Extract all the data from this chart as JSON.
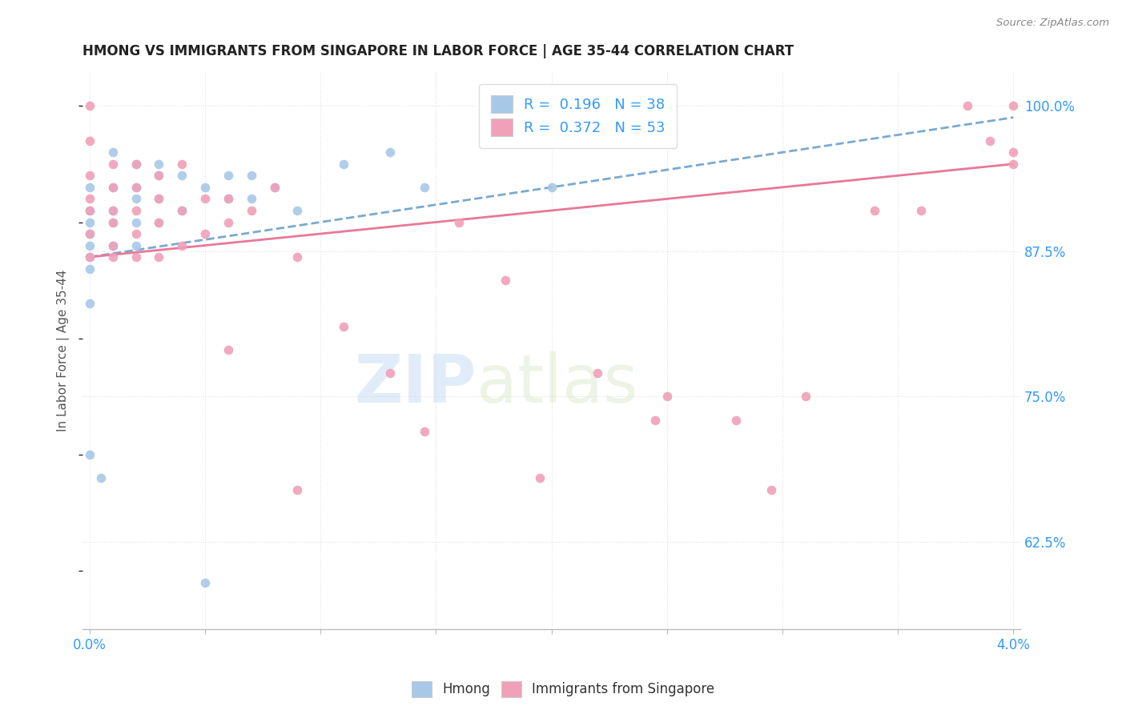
{
  "title": "HMONG VS IMMIGRANTS FROM SINGAPORE IN LABOR FORCE | AGE 35-44 CORRELATION CHART",
  "source": "Source: ZipAtlas.com",
  "ylabel": "In Labor Force | Age 35-44",
  "xlim": [
    0.0,
    0.04
  ],
  "ylim": [
    0.55,
    1.03
  ],
  "xticks": [
    0.0,
    0.005,
    0.01,
    0.015,
    0.02,
    0.025,
    0.03,
    0.035,
    0.04
  ],
  "xticklabels": [
    "0.0%",
    "",
    "",
    "",
    "",
    "",
    "",
    "",
    "4.0%"
  ],
  "yticks_right": [
    0.625,
    0.75,
    0.875,
    1.0
  ],
  "yticklabels_right": [
    "62.5%",
    "75.0%",
    "87.5%",
    "100.0%"
  ],
  "legend_r1": "R =  0.196   N = 38",
  "legend_r2": "R =  0.372   N = 53",
  "hmong_color": "#a8c8e8",
  "singapore_color": "#f0a0b8",
  "trend_hmong_color": "#7aaad0",
  "trend_singapore_color": "#e87898",
  "watermark_zip": "ZIP",
  "watermark_atlas": "atlas",
  "background": "#ffffff",
  "grid_color": "#e0e0e0",
  "blue_text": "#3399ff",
  "title_color": "#222222",
  "hmong_x": [
    0.0,
    0.0,
    0.0,
    0.0,
    0.0,
    0.0,
    0.0,
    0.0,
    0.0,
    0.001,
    0.001,
    0.001,
    0.001,
    0.001,
    0.002,
    0.002,
    0.002,
    0.002,
    0.002,
    0.003,
    0.003,
    0.003,
    0.003,
    0.004,
    0.004,
    0.005,
    0.005,
    0.006,
    0.006,
    0.007,
    0.007,
    0.008,
    0.009,
    0.011,
    0.013,
    0.0145,
    0.02,
    0.0005
  ],
  "hmong_y": [
    0.93,
    0.91,
    0.9,
    0.89,
    0.88,
    0.87,
    0.86,
    0.83,
    0.7,
    0.96,
    0.93,
    0.91,
    0.9,
    0.88,
    0.95,
    0.93,
    0.92,
    0.9,
    0.88,
    0.95,
    0.94,
    0.92,
    0.9,
    0.94,
    0.91,
    0.93,
    0.59,
    0.94,
    0.92,
    0.94,
    0.92,
    0.93,
    0.91,
    0.95,
    0.96,
    0.93,
    0.93,
    0.68
  ],
  "singapore_x": [
    0.0,
    0.0,
    0.0,
    0.0,
    0.0,
    0.0,
    0.0,
    0.001,
    0.001,
    0.001,
    0.001,
    0.001,
    0.001,
    0.002,
    0.002,
    0.002,
    0.002,
    0.002,
    0.003,
    0.003,
    0.003,
    0.003,
    0.004,
    0.004,
    0.004,
    0.005,
    0.005,
    0.006,
    0.006,
    0.007,
    0.008,
    0.009,
    0.011,
    0.013,
    0.016,
    0.018,
    0.022,
    0.025,
    0.028,
    0.031,
    0.034,
    0.038,
    0.039,
    0.04,
    0.04,
    0.04,
    0.036,
    0.0295,
    0.0145,
    0.0195,
    0.0245,
    0.009,
    0.006
  ],
  "singapore_y": [
    1.0,
    0.97,
    0.94,
    0.92,
    0.91,
    0.89,
    0.87,
    0.95,
    0.93,
    0.91,
    0.9,
    0.88,
    0.87,
    0.95,
    0.93,
    0.91,
    0.89,
    0.87,
    0.94,
    0.92,
    0.9,
    0.87,
    0.95,
    0.91,
    0.88,
    0.92,
    0.89,
    0.92,
    0.9,
    0.91,
    0.93,
    0.87,
    0.81,
    0.77,
    0.9,
    0.85,
    0.77,
    0.75,
    0.73,
    0.75,
    0.91,
    1.0,
    0.97,
    1.0,
    0.96,
    0.95,
    0.91,
    0.67,
    0.72,
    0.68,
    0.73,
    0.67,
    0.79
  ]
}
